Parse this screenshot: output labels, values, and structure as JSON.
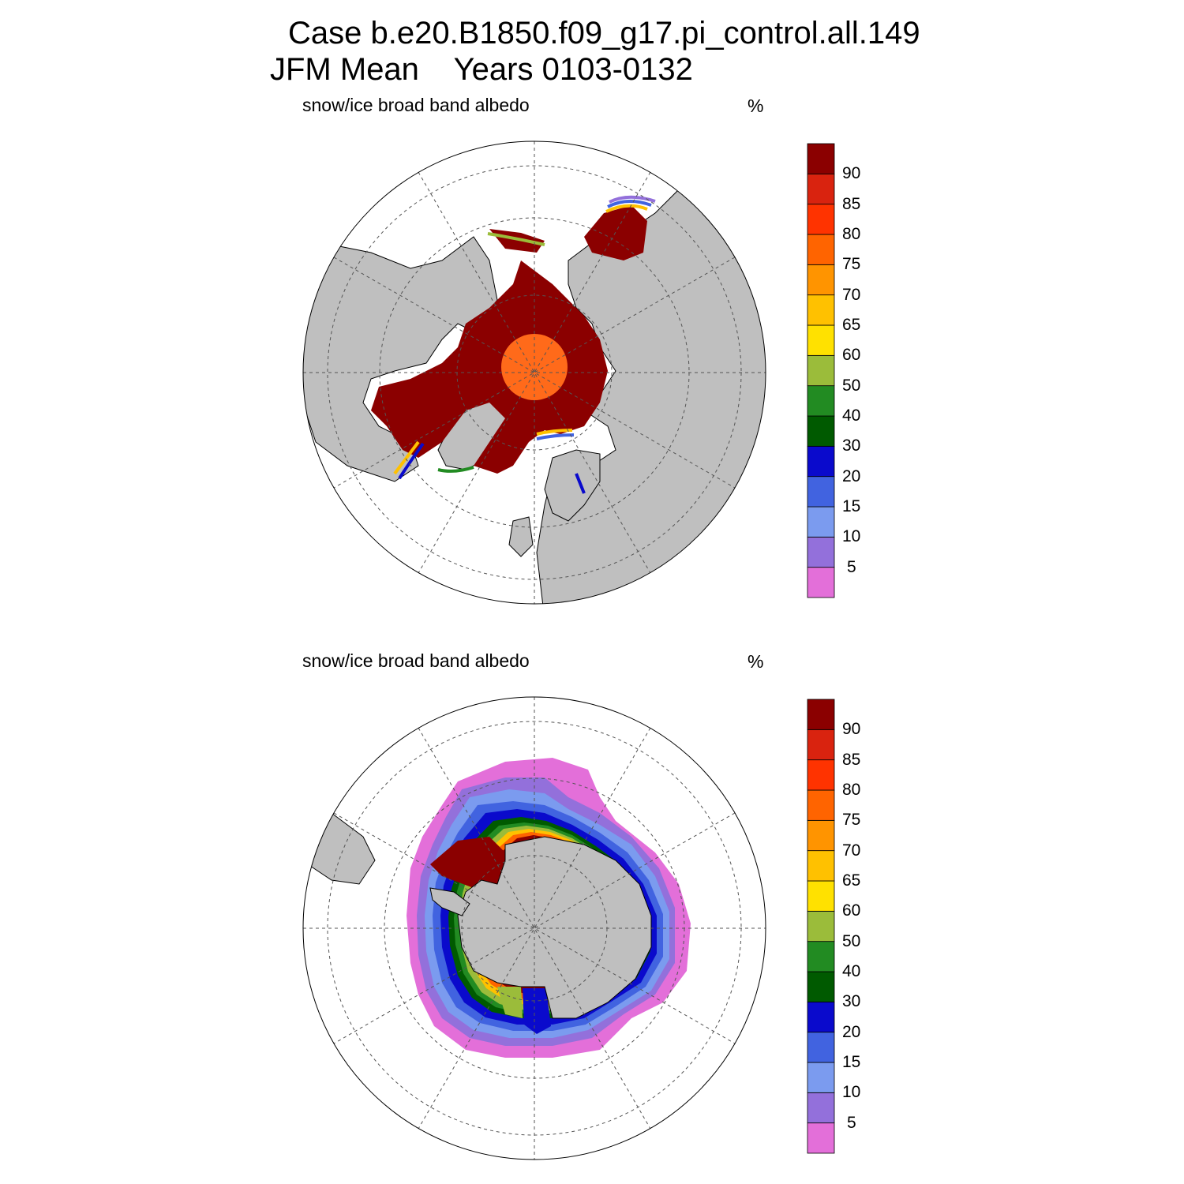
{
  "header": {
    "title_line1": "Case b.e20.B1850.f09_g17.pi_control.all.149",
    "title_line2": "JFM Mean    Years 0103-0132"
  },
  "panels": [
    {
      "id": "north",
      "label_left": "snow/ice broad band albedo",
      "label_right": "%"
    },
    {
      "id": "south",
      "label_left": "snow/ice broad band albedo",
      "label_right": "%"
    }
  ],
  "colorbar": {
    "labels": [
      "5",
      "10",
      "15",
      "20",
      "30",
      "40",
      "50",
      "60",
      "65",
      "70",
      "75",
      "80",
      "85",
      "90"
    ],
    "colors": [
      "#e36fd9",
      "#9370db",
      "#7b9bef",
      "#4163e0",
      "#0a0acc",
      "#005a00",
      "#228b22",
      "#9bbc3a",
      "#ffe100",
      "#ffc100",
      "#ff9400",
      "#ff6400",
      "#ff3300",
      "#d9230f",
      "#8b0000"
    ]
  },
  "colors": {
    "land": "#bfbfbf",
    "ocean": "#ffffff",
    "ice_max": "#8b0000",
    "pole_hole": "#ff6a1a"
  }
}
